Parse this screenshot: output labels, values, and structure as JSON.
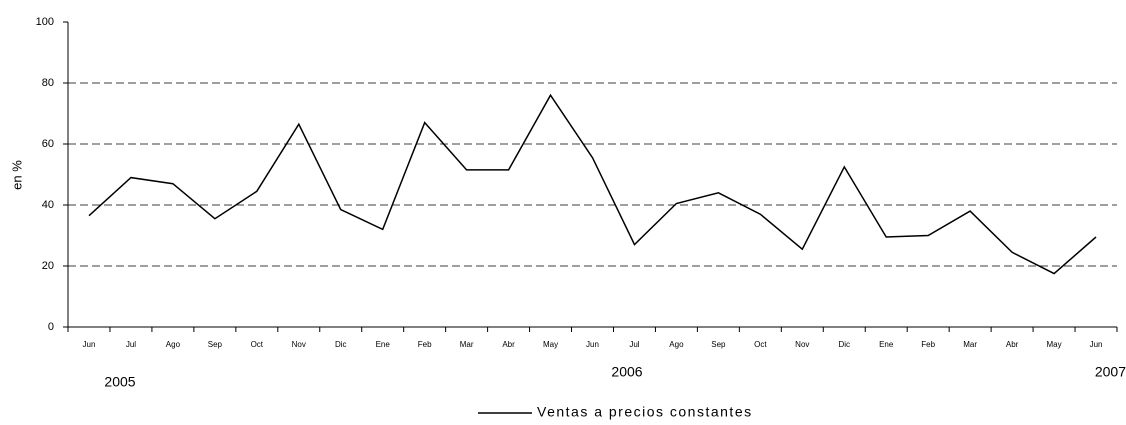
{
  "chart_data": {
    "type": "line",
    "y_label": "en %",
    "categories": [
      "Jun",
      "Jul",
      "Ago",
      "Sep",
      "Oct",
      "Nov",
      "Dic",
      "Ene",
      "Feb",
      "Mar",
      "Abr",
      "May",
      "Jun",
      "Jul",
      "Ago",
      "Sep",
      "Oct",
      "Nov",
      "Dic",
      "Ene",
      "Feb",
      "Mar",
      "Abr",
      "May",
      "Jun"
    ],
    "annotations": [
      "2005",
      "2006",
      "2007"
    ],
    "series": [
      {
        "name": "Ventas a precios constantes",
        "color": "#000000",
        "values": [
          36.5,
          49,
          47,
          35.5,
          44.5,
          66.5,
          38.5,
          32,
          67,
          51.5,
          51.5,
          76,
          55.5,
          27,
          40.5,
          44,
          37,
          25.5,
          52.5,
          29.5,
          30,
          38,
          24.5,
          17.5,
          29.5
        ]
      }
    ],
    "ylim": [
      0,
      100
    ],
    "yticks": [
      0,
      20,
      40,
      60,
      80,
      100
    ],
    "grid": true
  }
}
